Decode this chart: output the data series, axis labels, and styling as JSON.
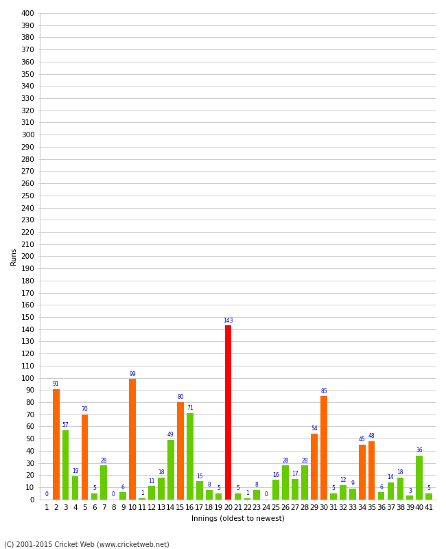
{
  "xlabel": "Innings (oldest to newest)",
  "ylabel": "Runs",
  "footer": "(C) 2001-2015 Cricket Web (www.cricketweb.net)",
  "ylim": [
    0,
    400
  ],
  "yticks": [
    0,
    10,
    20,
    30,
    40,
    50,
    60,
    70,
    80,
    90,
    100,
    110,
    120,
    130,
    140,
    150,
    160,
    170,
    180,
    190,
    200,
    210,
    220,
    230,
    240,
    250,
    260,
    270,
    280,
    290,
    300,
    310,
    320,
    330,
    340,
    350,
    360,
    370,
    380,
    390,
    400
  ],
  "innings": [
    1,
    2,
    3,
    4,
    5,
    6,
    7,
    8,
    9,
    10,
    11,
    12,
    13,
    14,
    15,
    16,
    17,
    18,
    19,
    20,
    21,
    22,
    23,
    24,
    25,
    26,
    27,
    28,
    29,
    30,
    31,
    32,
    33,
    34,
    35,
    36,
    37,
    38,
    39,
    40,
    41
  ],
  "values": [
    0,
    91,
    57,
    19,
    70,
    5,
    28,
    0,
    6,
    99,
    1,
    11,
    18,
    49,
    80,
    71,
    15,
    8,
    5,
    143,
    5,
    1,
    8,
    0,
    16,
    28,
    17,
    28,
    54,
    85,
    5,
    12,
    9,
    45,
    48,
    6,
    14,
    18,
    3,
    36,
    5
  ],
  "colors": [
    "#ff6600",
    "#ff6600",
    "#66cc00",
    "#66cc00",
    "#ff6600",
    "#66cc00",
    "#66cc00",
    "#ff6600",
    "#66cc00",
    "#ff6600",
    "#66cc00",
    "#66cc00",
    "#66cc00",
    "#66cc00",
    "#ff6600",
    "#66cc00",
    "#66cc00",
    "#66cc00",
    "#66cc00",
    "#ff0000",
    "#66cc00",
    "#66cc00",
    "#66cc00",
    "#66cc00",
    "#66cc00",
    "#66cc00",
    "#66cc00",
    "#66cc00",
    "#ff6600",
    "#ff6600",
    "#66cc00",
    "#66cc00",
    "#66cc00",
    "#ff6600",
    "#ff6600",
    "#66cc00",
    "#66cc00",
    "#66cc00",
    "#66cc00",
    "#66cc00",
    "#66cc00"
  ],
  "label_color": "#0000cc",
  "bg_color": "#ffffff",
  "grid_color": "#cccccc",
  "bar_width": 0.7,
  "label_fontsize": 5.5,
  "axis_fontsize": 7.5,
  "ytick_fontsize": 7.5,
  "footer_fontsize": 7,
  "title_fontsize": 10
}
